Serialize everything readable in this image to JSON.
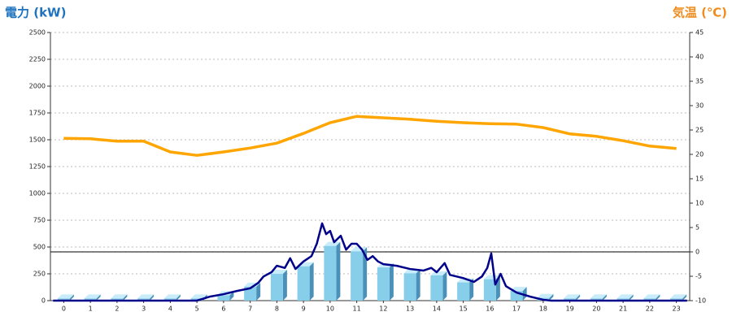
{
  "chart_data": {
    "type": "combo",
    "title_left": "電力 (kW)",
    "title_right": "気温 (℃)",
    "categories": [
      "0",
      "1",
      "2",
      "3",
      "4",
      "5",
      "6",
      "7",
      "8",
      "9",
      "10",
      "11",
      "12",
      "13",
      "14",
      "15",
      "16",
      "17",
      "18",
      "19",
      "20",
      "21",
      "22",
      "23"
    ],
    "ylim": [
      0,
      2500
    ],
    "yticks": [
      0,
      250,
      500,
      750,
      1000,
      1250,
      1500,
      1750,
      2000,
      2250,
      2500
    ],
    "y2lim": [
      -10,
      45
    ],
    "y2ticks": [
      -10,
      -5,
      0,
      5,
      10,
      15,
      20,
      25,
      30,
      35,
      40,
      45
    ],
    "grid": true,
    "y2_zero_line": true,
    "series": [
      {
        "kind": "bar3d",
        "color": "#87ceeb",
        "values": [
          20,
          20,
          20,
          20,
          20,
          20,
          50,
          130,
          250,
          320,
          510,
          460,
          310,
          255,
          235,
          170,
          200,
          90,
          25,
          20,
          20,
          20,
          20,
          20
        ]
      },
      {
        "kind": "line",
        "color": "#00008b",
        "x": [
          -0.4,
          5.0,
          5.5,
          6.0,
          6.5,
          7.0,
          7.3,
          7.5,
          7.8,
          8.0,
          8.3,
          8.5,
          8.7,
          9.0,
          9.3,
          9.5,
          9.7,
          9.85,
          10.0,
          10.15,
          10.4,
          10.6,
          10.8,
          11.0,
          11.2,
          11.4,
          11.6,
          11.8,
          12.0,
          12.5,
          13.0,
          13.5,
          13.8,
          14.0,
          14.3,
          14.5,
          15.0,
          15.4,
          15.7,
          15.9,
          16.05,
          16.2,
          16.4,
          16.6,
          17.0,
          17.5,
          18.0,
          18.3,
          23.4
        ],
        "values": [
          0,
          0,
          38,
          60,
          90,
          115,
          165,
          225,
          265,
          325,
          305,
          395,
          295,
          365,
          415,
          530,
          720,
          620,
          650,
          545,
          605,
          475,
          530,
          530,
          475,
          380,
          415,
          365,
          340,
          325,
          295,
          280,
          305,
          265,
          350,
          240,
          210,
          175,
          225,
          305,
          440,
          150,
          250,
          135,
          75,
          38,
          8,
          0,
          0
        ]
      },
      {
        "kind": "line",
        "axis": "y2",
        "color": "#ffa500",
        "values": [
          23.3,
          23.2,
          22.7,
          22.7,
          20.5,
          19.8,
          20.5,
          21.3,
          22.3,
          24.3,
          26.5,
          27.8,
          27.5,
          27.2,
          26.8,
          26.5,
          26.3,
          26.2,
          25.5,
          24.2,
          23.7,
          22.8,
          21.7,
          21.2
        ]
      }
    ]
  }
}
